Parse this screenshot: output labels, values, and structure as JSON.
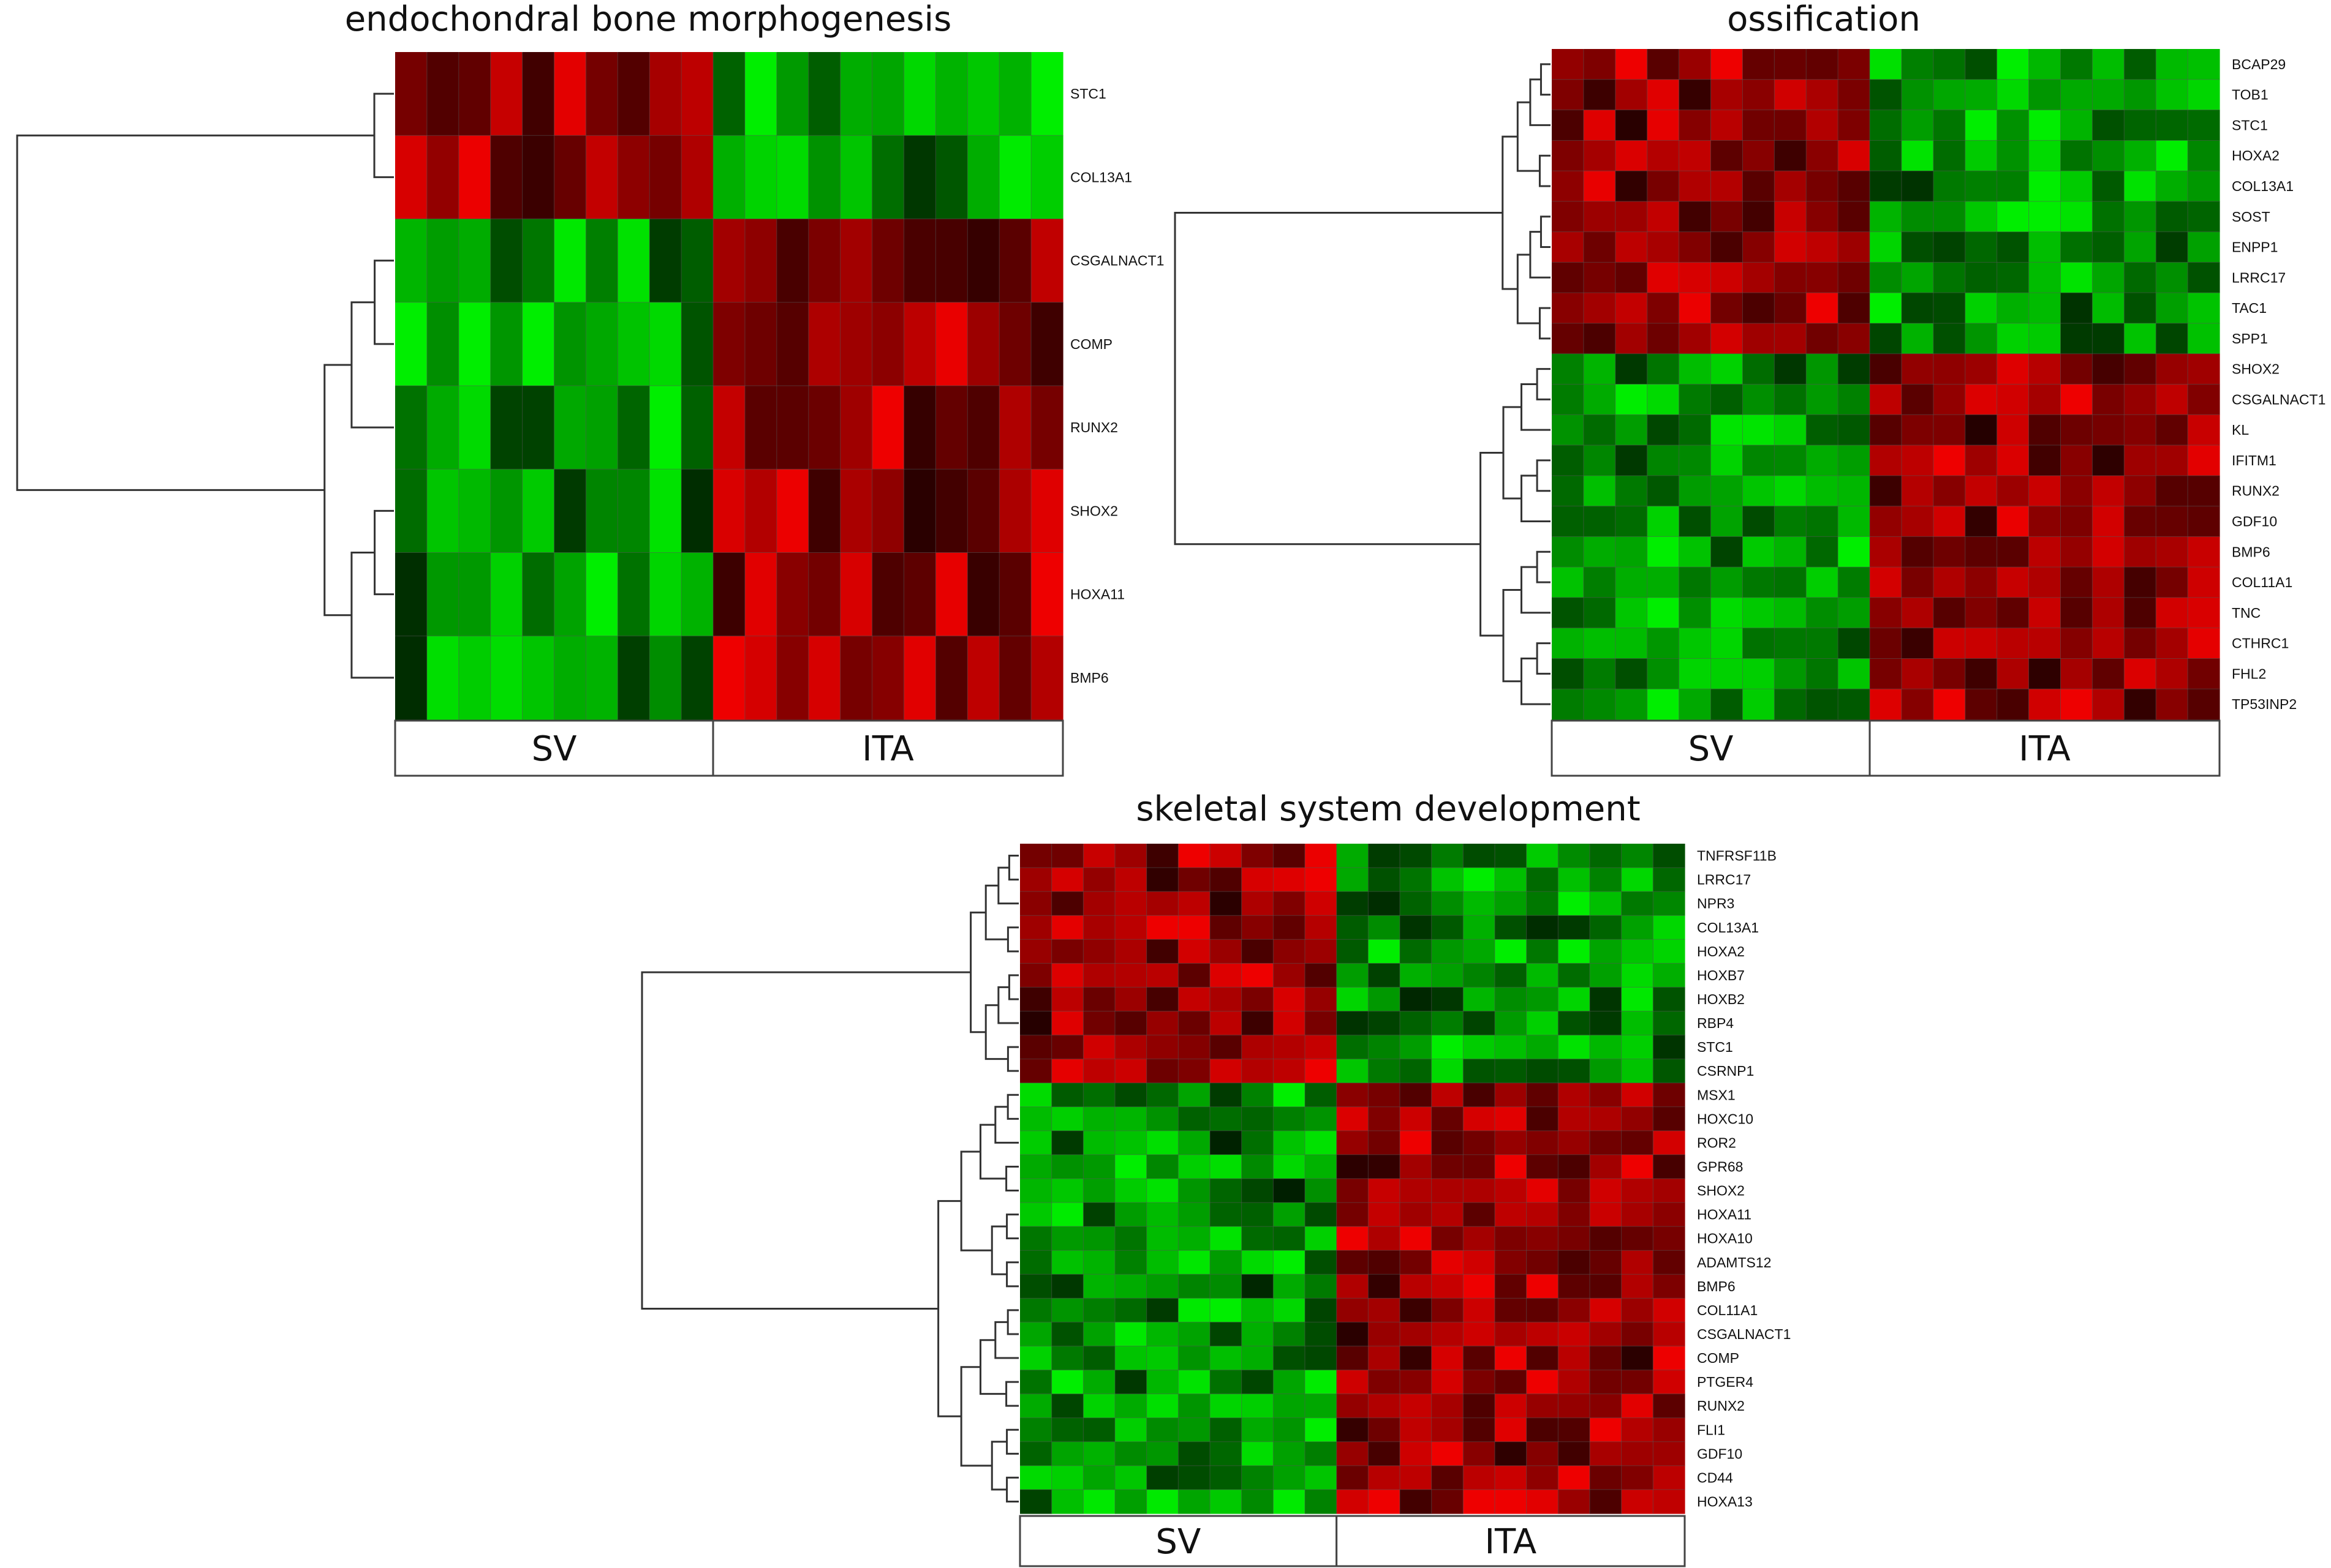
{
  "colors": {
    "up": "#e00000",
    "down": "#00e000",
    "mid": "#000000",
    "grid": "#555555",
    "tree": "#333333",
    "frame": "#444444"
  },
  "chart_data": [
    {
      "type": "heatmap",
      "title": "endochondral bone morphogenesis",
      "rows": [
        "STC1",
        "COL13A1",
        "CSGALNACT1",
        "COMP",
        "RUNX2",
        "SHOX2",
        "HOXA11",
        "BMP6"
      ],
      "groups": [
        {
          "label": "SV",
          "n_columns": 10
        },
        {
          "label": "ITA",
          "n_columns": 11
        }
      ],
      "row_pattern": [
        1,
        1,
        -1,
        -1,
        -1,
        -1,
        -1,
        -1
      ],
      "dendrogram_leaf_order": [
        0,
        1,
        2,
        3,
        4,
        5,
        6,
        7
      ],
      "legend": "none",
      "grid": true
    },
    {
      "type": "heatmap",
      "title": "ossification",
      "rows": [
        "BCAP29",
        "TOB1",
        "STC1",
        "HOXA2",
        "COL13A1",
        "SOST",
        "ENPP1",
        "LRRC17",
        "TAC1",
        "SPP1",
        "SHOX2",
        "CSGALNACT1",
        "KL",
        "IFITM1",
        "RUNX2",
        "GDF10",
        "BMP6",
        "COL11A1",
        "TNC",
        "CTHRC1",
        "FHL2",
        "TP53INP2"
      ],
      "groups": [
        {
          "label": "SV",
          "n_columns": 10
        },
        {
          "label": "ITA",
          "n_columns": 11
        }
      ],
      "row_pattern": [
        1,
        1,
        1,
        1,
        1,
        1,
        1,
        1,
        1,
        1,
        -1,
        -1,
        -1,
        -1,
        -1,
        -1,
        -1,
        -1,
        -1,
        -1,
        -1,
        -1
      ],
      "legend": "none",
      "grid": true
    },
    {
      "type": "heatmap",
      "title": "skeletal system development",
      "rows": [
        "TNFRSF11B",
        "LRRC17",
        "NPR3",
        "COL13A1",
        "HOXA2",
        "HOXB7",
        "HOXB2",
        "RBP4",
        "STC1",
        "CSRNP1",
        "MSX1",
        "HOXC10",
        "ROR2",
        "GPR68",
        "SHOX2",
        "HOXA11",
        "HOXA10",
        "ADAMTS12",
        "BMP6",
        "COL11A1",
        "CSGALNACT1",
        "COMP",
        "PTGER4",
        "RUNX2",
        "FLI1",
        "GDF10",
        "CD44",
        "HOXA13"
      ],
      "groups": [
        {
          "label": "SV",
          "n_columns": 10
        },
        {
          "label": "ITA",
          "n_columns": 11
        }
      ],
      "row_pattern": [
        1,
        1,
        1,
        1,
        1,
        1,
        1,
        1,
        1,
        1,
        -1,
        -1,
        -1,
        -1,
        -1,
        -1,
        -1,
        -1,
        -1,
        -1,
        -1,
        -1,
        -1,
        -1,
        -1,
        -1,
        -1,
        -1
      ],
      "legend": "none",
      "grid": true
    }
  ]
}
